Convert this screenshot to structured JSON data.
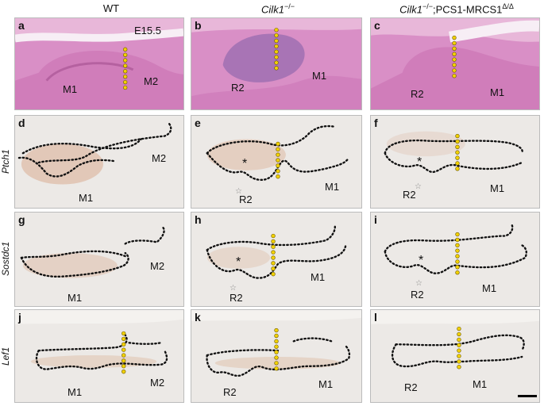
{
  "columns": [
    {
      "label": "WT"
    },
    {
      "gene": "Cilk1",
      "sup": "−/−"
    },
    {
      "gene": "Cilk1",
      "sup": "−/−",
      "suffix": ";PCS1-MRCS1",
      "sup2": "Δ/Δ"
    }
  ],
  "rows": [
    {
      "label": ""
    },
    {
      "label": "Ptch1"
    },
    {
      "label": "Sostdc1"
    },
    {
      "label": "Lef1"
    }
  ],
  "panels": {
    "a": {
      "letter": "a",
      "stage": "E15.5",
      "l1": "M1",
      "l2": "M2"
    },
    "b": {
      "letter": "b",
      "l1": "R2",
      "l2": "M1"
    },
    "c": {
      "letter": "c",
      "l1": "R2",
      "l2": "M1"
    },
    "d": {
      "letter": "d",
      "l1": "M1",
      "l2": "M2"
    },
    "e": {
      "letter": "e",
      "l1": "R2",
      "l2": "M1",
      "star": "*"
    },
    "f": {
      "letter": "f",
      "l1": "R2",
      "l2": "M1",
      "star": "*"
    },
    "g": {
      "letter": "g",
      "l1": "M1",
      "l2": "M2"
    },
    "h": {
      "letter": "h",
      "l1": "R2",
      "l2": "M1",
      "star": "*"
    },
    "i": {
      "letter": "i",
      "l1": "R2",
      "l2": "M1",
      "star": "*"
    },
    "j": {
      "letter": "j",
      "l1": "M1",
      "l2": "M2"
    },
    "k": {
      "letter": "k",
      "l1": "R2",
      "l2": "M1"
    },
    "l": {
      "letter": "l",
      "l1": "R2",
      "l2": "M1"
    }
  },
  "colors": {
    "he_background": "#d98fc6",
    "ish_background": "#ece9e6",
    "stain": "#c8733f",
    "marker": "#f2d100",
    "outline": "#111111"
  }
}
